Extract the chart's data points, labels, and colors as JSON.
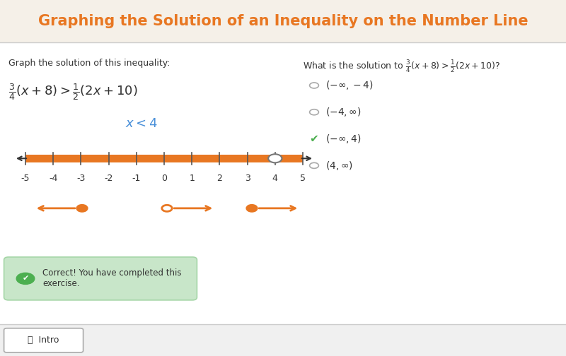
{
  "title": "Graphing the Solution of an Inequality on the Number Line",
  "title_color": "#E87722",
  "bg_color": "#FFFFFF",
  "number_line_range": [
    -5,
    5
  ],
  "solution_point": 4,
  "number_line_bar_color": "#E87722",
  "inequality_label_color": "#4A90D9",
  "left_text": "Graph the solution of this inequality:",
  "mini_arrow_color": "#E87722",
  "correct_box_color": "#C8E6C9",
  "correct_icon_color": "#4CAF50",
  "correct_msg": "Correct! You have completed this\nexercise."
}
